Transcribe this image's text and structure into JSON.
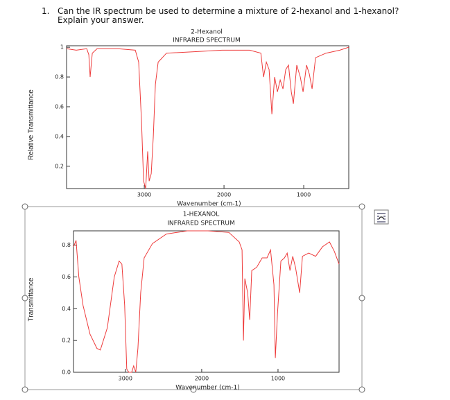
{
  "question": {
    "number": "1.",
    "text": "Can the IR spectrum be used to determine a mixture of 2-hexanol and 1-hexanol?",
    "instruction": "Explain your answer."
  },
  "chart_data": [
    {
      "type": "line",
      "title": "2-Hexanol",
      "subtitle": "INFRARED SPECTRUM",
      "x_label": "Wavenumber (cm-1)",
      "y_label": "Relative Transmittance",
      "color": "#ee3b3b",
      "x_inverted": true,
      "x": [
        3975,
        3853,
        3722,
        3696,
        3679,
        3652,
        3592,
        3331,
        3113,
        3070,
        3035,
        3009,
        2983,
        2957,
        2939,
        2913,
        2887,
        2861,
        2826,
        2722,
        2374,
        2026,
        1678,
        1538,
        1504,
        1469,
        1434,
        1400,
        1365,
        1330,
        1295,
        1260,
        1226,
        1191,
        1156,
        1130,
        1087,
        1043,
        1008,
        965,
        930,
        895,
        852,
        721,
        547,
        435
      ],
      "values": [
        0.99,
        0.98,
        0.99,
        0.95,
        0.8,
        0.96,
        0.99,
        0.99,
        0.98,
        0.9,
        0.5,
        0.1,
        0.05,
        0.3,
        0.1,
        0.15,
        0.4,
        0.75,
        0.9,
        0.96,
        0.97,
        0.98,
        0.98,
        0.96,
        0.8,
        0.9,
        0.85,
        0.55,
        0.8,
        0.7,
        0.78,
        0.72,
        0.85,
        0.88,
        0.7,
        0.62,
        0.88,
        0.8,
        0.7,
        0.88,
        0.82,
        0.72,
        0.93,
        0.96,
        0.98,
        1.0
      ],
      "xlim": [
        435,
        3975
      ],
      "ylim": [
        0.05,
        1.01
      ],
      "xticks": [
        3000,
        2000,
        1000
      ],
      "yticks": [
        0.2,
        0.4,
        0.6,
        0.8,
        1
      ]
    },
    {
      "type": "line",
      "title": "1-HEXANOL",
      "subtitle": "INFRARED SPECTRUM",
      "x_label": "Wavenumber (cm-1)",
      "y_label": "Transmittance",
      "color": "#ee3b3b",
      "x_inverted": true,
      "x": [
        3680,
        3646,
        3610,
        3555,
        3464,
        3373,
        3328,
        3237,
        3146,
        3082,
        3046,
        3009,
        2982,
        2955,
        2918,
        2891,
        2864,
        2836,
        2800,
        2754,
        2645,
        2463,
        2190,
        1917,
        1644,
        1508,
        1471,
        1453,
        1435,
        1398,
        1371,
        1344,
        1280,
        1208,
        1144,
        1098,
        1053,
        1035,
        1007,
        962,
        916,
        880,
        843,
        807,
        771,
        716,
        680,
        598,
        507,
        416,
        325,
        261,
        200
      ],
      "values": [
        0.79,
        0.83,
        0.6,
        0.42,
        0.24,
        0.15,
        0.14,
        0.28,
        0.6,
        0.7,
        0.68,
        0.42,
        0.02,
        0.0,
        0.0,
        0.04,
        0.0,
        0.15,
        0.5,
        0.72,
        0.81,
        0.87,
        0.89,
        0.89,
        0.88,
        0.82,
        0.77,
        0.2,
        0.59,
        0.5,
        0.33,
        0.64,
        0.66,
        0.72,
        0.72,
        0.77,
        0.55,
        0.09,
        0.37,
        0.7,
        0.72,
        0.75,
        0.64,
        0.73,
        0.66,
        0.5,
        0.73,
        0.75,
        0.73,
        0.79,
        0.82,
        0.76,
        0.68
      ],
      "xlim": [
        200,
        3680
      ],
      "ylim": [
        0,
        0.89
      ],
      "xticks": [
        3000,
        2000,
        1000
      ],
      "yticks": [
        {
          "value": 0,
          "label": "0.0"
        },
        0.2,
        0.4,
        0.6,
        0.8
      ]
    }
  ]
}
